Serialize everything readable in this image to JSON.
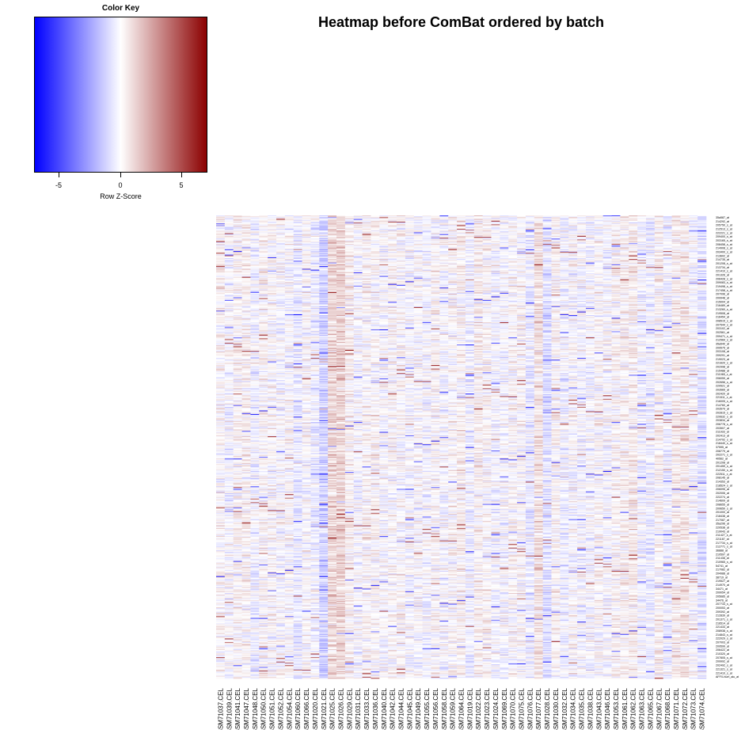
{
  "title": "Heatmap before ComBat ordered by batch",
  "chart_data": {
    "type": "heatmap",
    "title": "Heatmap before ComBat ordered by batch",
    "color_key": {
      "title": "Color Key",
      "xlabel": "Row Z-Score",
      "range": [
        -7,
        7
      ],
      "ticks": [
        -5,
        0,
        5
      ],
      "tick_labels": [
        "-5",
        "0",
        "5"
      ],
      "colors": [
        "#0000ff",
        "#ffffff",
        "#8b0000"
      ]
    },
    "columns": [
      "GSM71037.CEL",
      "GSM71039.CEL",
      "GSM71041.CEL",
      "GSM71047.CEL",
      "GSM71048.CEL",
      "GSM71050.CEL",
      "GSM71051.CEL",
      "GSM71052.CEL",
      "GSM71054.CEL",
      "GSM71060.CEL",
      "GSM71066.CEL",
      "GSM71020.CEL",
      "GSM71021.CEL",
      "GSM71025.CEL",
      "GSM71026.CEL",
      "GSM71029.CEL",
      "GSM71031.CEL",
      "GSM71033.CEL",
      "GSM71036.CEL",
      "GSM71040.CEL",
      "GSM71042.CEL",
      "GSM71044.CEL",
      "GSM71045.CEL",
      "GSM71049.CEL",
      "GSM71055.CEL",
      "GSM71056.CEL",
      "GSM71058.CEL",
      "GSM71059.CEL",
      "GSM71064.CEL",
      "GSM71019.CEL",
      "GSM71022.CEL",
      "GSM71023.CEL",
      "GSM71024.CEL",
      "GSM71069.CEL",
      "GSM71070.CEL",
      "GSM71075.CEL",
      "GSM71076.CEL",
      "GSM71077.CEL",
      "GSM71028.CEL",
      "GSM71030.CEL",
      "GSM71032.CEL",
      "GSM71034.CEL",
      "GSM71035.CEL",
      "GSM71038.CEL",
      "GSM71043.CEL",
      "GSM71046.CEL",
      "GSM71053.CEL",
      "GSM71061.CEL",
      "GSM71062.CEL",
      "GSM71063.CEL",
      "GSM71065.CEL",
      "GSM71067.CEL",
      "GSM71068.CEL",
      "GSM71071.CEL",
      "GSM71072.CEL",
      "GSM71073.CEL",
      "GSM71074.CEL"
    ],
    "row_labels": [
      "35a587_at",
      "214292_at",
      "205750_s_at",
      "212513_s_at",
      "222221_s_at",
      "209400_s_at",
      "203165_s_at",
      "208458_s_at",
      "214908_s_at",
      "203400_s_at",
      "213602_at",
      "214735_at",
      "201208_s_at",
      "213734_at",
      "221410_s_at",
      "201326_at",
      "206428_s_at",
      "209083_s_at",
      "219498_s_at",
      "217458_s_at",
      "207096_at",
      "209948_at",
      "215004_at",
      "216489_at",
      "213260_s_at",
      "219508_at",
      "216454_at",
      "208515_s_at",
      "207544_s_at",
      "203102_at",
      "202561_at",
      "209471_s_at",
      "212569_s_at",
      "35a540_at",
      "209575_at",
      "203108_at",
      "209291_at",
      "219023_at",
      "221620_s_at",
      "202998_at",
      "215488_at",
      "211065_x_at",
      "206059_at",
      "202656_s_at",
      "220521_at",
      "203565_at",
      "202420_at",
      "221511_x_at",
      "216005_s_at",
      "214760_at",
      "203579_at",
      "202815_s_at",
      "220632_s_at",
      "203834_at",
      "206778_s_at",
      "203507_at",
      "211933_at",
      "202413_at",
      "214792_s_at",
      "218440_s_at",
      "37595_at",
      "208779_at",
      "202271_s_at",
      "40562_at",
      "201208_at",
      "201459_s_at",
      "212150_s_at",
      "222511_x_at",
      "208145_at",
      "214353_at",
      "218524_s_at",
      "206095_at",
      "202006_at",
      "222274_at",
      "214609_at",
      "208655_at",
      "209650_s_at",
      "201000_at",
      "218438_at",
      "217087_at",
      "35a296_at",
      "220538_at",
      "219043_at",
      "211427_s_at",
      "221187_at",
      "217734_s_at",
      "212771_s_at",
      "36888_at",
      "210597_at",
      "211438_at",
      "210965_s_at",
      "54741_at",
      "217082_at",
      "204988_at",
      "38719_at",
      "219527_at",
      "214970_at",
      "34471_at",
      "209054_at",
      "205685_at",
      "34476_at",
      "207733_s_at",
      "200053_at",
      "209392_at",
      "212839_at",
      "201371_s_at",
      "216514_at",
      "221433_at",
      "208938_s_at",
      "214843_s_at",
      "222029_s_at",
      "207003_at",
      "209599_at",
      "206422_at",
      "210320_at",
      "207805_s_at",
      "209992_at",
      "202492_s_at",
      "221321_s_at",
      "221410_s_at",
      "AFFX-hum_alu_at"
    ],
    "n_rows": 520,
    "column_effects": [
      0.1,
      -0.1,
      0.15,
      0.2,
      -0.2,
      0.1,
      0.05,
      -0.05,
      0.0,
      -0.35,
      0.05,
      -0.25,
      -0.8,
      0.7,
      0.8,
      0.2,
      -0.1,
      0.15,
      0.1,
      -0.05,
      0.1,
      0.05,
      -0.1,
      0.0,
      -0.1,
      0.1,
      -0.1,
      0.1,
      0.2,
      -0.25,
      0.25,
      0.1,
      -0.15,
      -0.1,
      0.1,
      0.05,
      -0.35,
      0.55,
      -0.55,
      0.15,
      -0.2,
      0.0,
      -0.15,
      -0.1,
      0.1,
      -0.1,
      0.15,
      0.2,
      0.3,
      -0.2,
      -0.25,
      0.2,
      -0.3,
      0.3,
      0.4,
      -0.05,
      -0.45
    ]
  }
}
